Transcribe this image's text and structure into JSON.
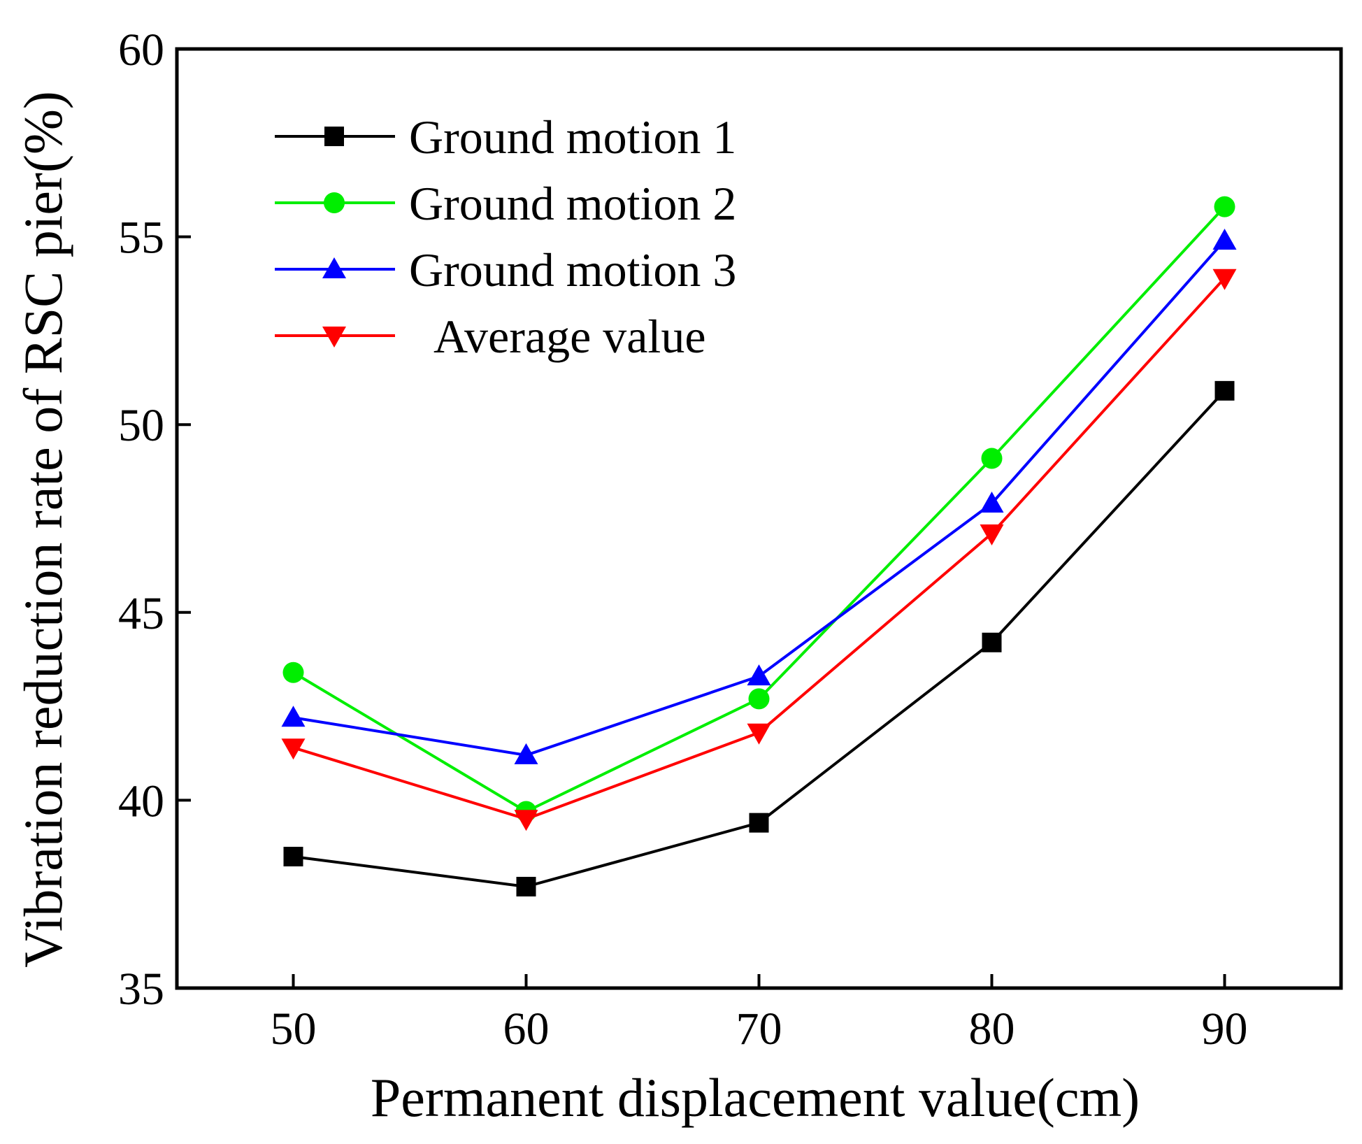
{
  "chart_data": {
    "type": "line",
    "title": "",
    "xlabel": "Permanent displacement value(cm)",
    "ylabel": "Vibration reduction rate of RSC pier(%)",
    "x": [
      50,
      60,
      70,
      80,
      90
    ],
    "xlim": [
      45,
      95
    ],
    "ylim": [
      35,
      60
    ],
    "xticks": [
      50,
      60,
      70,
      80,
      90
    ],
    "yticks": [
      35,
      40,
      45,
      50,
      55,
      60
    ],
    "grid": false,
    "legend_position": "top-left",
    "series": [
      {
        "name": "Ground motion 1",
        "color": "#000000",
        "marker": "square",
        "values": [
          38.5,
          37.7,
          39.4,
          44.2,
          50.9
        ]
      },
      {
        "name": "Ground motion 2",
        "color": "#00ee00",
        "marker": "circle",
        "values": [
          43.4,
          39.7,
          42.7,
          49.1,
          55.8
        ]
      },
      {
        "name": "Ground motion 3",
        "color": "#0000ff",
        "marker": "triangle-up",
        "values": [
          42.2,
          41.2,
          43.3,
          47.9,
          54.9
        ]
      },
      {
        "name": "Average value",
        "color": "#ff0000",
        "marker": "triangle-down",
        "values": [
          41.4,
          39.5,
          41.8,
          47.1,
          53.9
        ]
      }
    ]
  }
}
